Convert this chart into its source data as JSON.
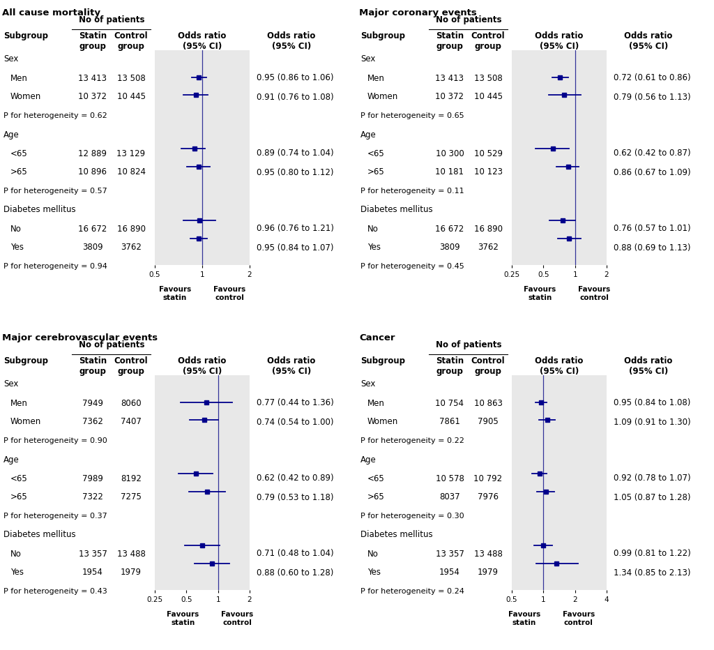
{
  "panels": [
    {
      "title": "All cause mortality",
      "xlim": [
        0.5,
        2.0
      ],
      "xticks": [
        0.5,
        1.0,
        2.0
      ],
      "xtick_labels": [
        "0.5",
        "1",
        "2"
      ],
      "subgroups": [
        {
          "label": "Sex",
          "type": "header",
          "statin": "",
          "control": ""
        },
        {
          "label": "Men",
          "type": "data",
          "statin": "13 413",
          "control": "13 508",
          "or": 0.95,
          "lo": 0.86,
          "hi": 1.06,
          "text": "0.95 (0.86 to 1.06)"
        },
        {
          "label": "Women",
          "type": "data",
          "statin": "10 372",
          "control": "10 445",
          "or": 0.91,
          "lo": 0.76,
          "hi": 1.08,
          "text": "0.91 (0.76 to 1.08)"
        },
        {
          "label": "P for heterogeneity = 0.62",
          "type": "phet",
          "statin": "",
          "control": ""
        },
        {
          "label": "Age",
          "type": "header",
          "statin": "",
          "control": ""
        },
        {
          "label": "<65",
          "type": "data",
          "statin": "12 889",
          "control": "13 129",
          "or": 0.89,
          "lo": 0.74,
          "hi": 1.04,
          "text": "0.89 (0.74 to 1.04)"
        },
        {
          "label": ">65",
          "type": "data",
          "statin": "10 896",
          "control": "10 824",
          "or": 0.95,
          "lo": 0.8,
          "hi": 1.12,
          "text": "0.95 (0.80 to 1.12)"
        },
        {
          "label": "P for heterogeneity = 0.57",
          "type": "phet",
          "statin": "",
          "control": ""
        },
        {
          "label": "Diabetes mellitus",
          "type": "header",
          "statin": "",
          "control": ""
        },
        {
          "label": "No",
          "type": "data",
          "statin": "16 672",
          "control": "16 890",
          "or": 0.96,
          "lo": 0.76,
          "hi": 1.21,
          "text": "0.96 (0.76 to 1.21)"
        },
        {
          "label": "Yes",
          "type": "data",
          "statin": "3809",
          "control": "3762",
          "or": 0.95,
          "lo": 0.84,
          "hi": 1.07,
          "text": "0.95 (0.84 to 1.07)"
        },
        {
          "label": "P for heterogeneity = 0.94",
          "type": "phet",
          "statin": "",
          "control": ""
        }
      ]
    },
    {
      "title": "Major coronary events",
      "xlim": [
        0.25,
        2.0
      ],
      "xticks": [
        0.25,
        0.5,
        1.0,
        2.0
      ],
      "xtick_labels": [
        "0.25",
        "0.5",
        "1",
        "2"
      ],
      "subgroups": [
        {
          "label": "Sex",
          "type": "header",
          "statin": "",
          "control": ""
        },
        {
          "label": "Men",
          "type": "data",
          "statin": "13 413",
          "control": "13 508",
          "or": 0.72,
          "lo": 0.61,
          "hi": 0.86,
          "text": "0.72 (0.61 to 0.86)"
        },
        {
          "label": "Women",
          "type": "data",
          "statin": "10 372",
          "control": "10 445",
          "or": 0.79,
          "lo": 0.56,
          "hi": 1.13,
          "text": "0.79 (0.56 to 1.13)"
        },
        {
          "label": "P for heterogeneity = 0.65",
          "type": "phet",
          "statin": "",
          "control": ""
        },
        {
          "label": "Age",
          "type": "header",
          "statin": "",
          "control": ""
        },
        {
          "label": "<65",
          "type": "data",
          "statin": "10 300",
          "control": "10 529",
          "or": 0.62,
          "lo": 0.42,
          "hi": 0.87,
          "text": "0.62 (0.42 to 0.87)"
        },
        {
          "label": ">65",
          "type": "data",
          "statin": "10 181",
          "control": "10 123",
          "or": 0.86,
          "lo": 0.67,
          "hi": 1.09,
          "text": "0.86 (0.67 to 1.09)"
        },
        {
          "label": "P for heterogeneity = 0.11",
          "type": "phet",
          "statin": "",
          "control": ""
        },
        {
          "label": "Diabetes mellitus",
          "type": "header",
          "statin": "",
          "control": ""
        },
        {
          "label": "No",
          "type": "data",
          "statin": "16 672",
          "control": "16 890",
          "or": 0.76,
          "lo": 0.57,
          "hi": 1.01,
          "text": "0.76 (0.57 to 1.01)"
        },
        {
          "label": "Yes",
          "type": "data",
          "statin": "3809",
          "control": "3762",
          "or": 0.88,
          "lo": 0.69,
          "hi": 1.13,
          "text": "0.88 (0.69 to 1.13)"
        },
        {
          "label": "P for heterogeneity = 0.45",
          "type": "phet",
          "statin": "",
          "control": ""
        }
      ]
    },
    {
      "title": "Major cerebrovascular events",
      "xlim": [
        0.25,
        2.0
      ],
      "xticks": [
        0.25,
        0.5,
        1.0,
        2.0
      ],
      "xtick_labels": [
        "0.25",
        "0.5",
        "1",
        "2"
      ],
      "subgroups": [
        {
          "label": "Sex",
          "type": "header",
          "statin": "",
          "control": ""
        },
        {
          "label": "Men",
          "type": "data",
          "statin": "7949",
          "control": "8060",
          "or": 0.77,
          "lo": 0.44,
          "hi": 1.36,
          "text": "0.77 (0.44 to 1.36)"
        },
        {
          "label": "Women",
          "type": "data",
          "statin": "7362",
          "control": "7407",
          "or": 0.74,
          "lo": 0.54,
          "hi": 1.0,
          "text": "0.74 (0.54 to 1.00)"
        },
        {
          "label": "P for heterogeneity = 0.90",
          "type": "phet",
          "statin": "",
          "control": ""
        },
        {
          "label": "Age",
          "type": "header",
          "statin": "",
          "control": ""
        },
        {
          "label": "<65",
          "type": "data",
          "statin": "7989",
          "control": "8192",
          "or": 0.62,
          "lo": 0.42,
          "hi": 0.89,
          "text": "0.62 (0.42 to 0.89)"
        },
        {
          "label": ">65",
          "type": "data",
          "statin": "7322",
          "control": "7275",
          "or": 0.79,
          "lo": 0.53,
          "hi": 1.18,
          "text": "0.79 (0.53 to 1.18)"
        },
        {
          "label": "P for heterogeneity = 0.37",
          "type": "phet",
          "statin": "",
          "control": ""
        },
        {
          "label": "Diabetes mellitus",
          "type": "header",
          "statin": "",
          "control": ""
        },
        {
          "label": "No",
          "type": "data",
          "statin": "13 357",
          "control": "13 488",
          "or": 0.71,
          "lo": 0.48,
          "hi": 1.04,
          "text": "0.71 (0.48 to 1.04)"
        },
        {
          "label": "Yes",
          "type": "data",
          "statin": "1954",
          "control": "1979",
          "or": 0.88,
          "lo": 0.6,
          "hi": 1.28,
          "text": "0.88 (0.60 to 1.28)"
        },
        {
          "label": "P for heterogeneity = 0.43",
          "type": "phet",
          "statin": "",
          "control": ""
        }
      ]
    },
    {
      "title": "Cancer",
      "xlim": [
        0.5,
        4.0
      ],
      "xticks": [
        0.5,
        1.0,
        2.0,
        4.0
      ],
      "xtick_labels": [
        "0.5",
        "1",
        "2",
        "4"
      ],
      "subgroups": [
        {
          "label": "Sex",
          "type": "header",
          "statin": "",
          "control": ""
        },
        {
          "label": "Men",
          "type": "data",
          "statin": "10 754",
          "control": "10 863",
          "or": 0.95,
          "lo": 0.84,
          "hi": 1.08,
          "text": "0.95 (0.84 to 1.08)"
        },
        {
          "label": "Women",
          "type": "data",
          "statin": "7861",
          "control": "7905",
          "or": 1.09,
          "lo": 0.91,
          "hi": 1.3,
          "text": "1.09 (0.91 to 1.30)"
        },
        {
          "label": "P for heterogeneity = 0.22",
          "type": "phet",
          "statin": "",
          "control": ""
        },
        {
          "label": "Age",
          "type": "header",
          "statin": "",
          "control": ""
        },
        {
          "label": "<65",
          "type": "data",
          "statin": "10 578",
          "control": "10 792",
          "or": 0.92,
          "lo": 0.78,
          "hi": 1.07,
          "text": "0.92 (0.78 to 1.07)"
        },
        {
          "label": ">65",
          "type": "data",
          "statin": "8037",
          "control": "7976",
          "or": 1.05,
          "lo": 0.87,
          "hi": 1.28,
          "text": "1.05 (0.87 to 1.28)"
        },
        {
          "label": "P for heterogeneity = 0.30",
          "type": "phet",
          "statin": "",
          "control": ""
        },
        {
          "label": "Diabetes mellitus",
          "type": "header",
          "statin": "",
          "control": ""
        },
        {
          "label": "No",
          "type": "data",
          "statin": "13 357",
          "control": "13 488",
          "or": 0.99,
          "lo": 0.81,
          "hi": 1.22,
          "text": "0.99 (0.81 to 1.22)"
        },
        {
          "label": "Yes",
          "type": "data",
          "statin": "1954",
          "control": "1979",
          "or": 1.34,
          "lo": 0.85,
          "hi": 2.13,
          "text": "1.34 (0.85 to 2.13)"
        },
        {
          "label": "P for heterogeneity = 0.24",
          "type": "phet",
          "statin": "",
          "control": ""
        }
      ]
    }
  ],
  "blue": "#00008B",
  "refline_color": "#333399",
  "bg_color": "#E8E8E8"
}
